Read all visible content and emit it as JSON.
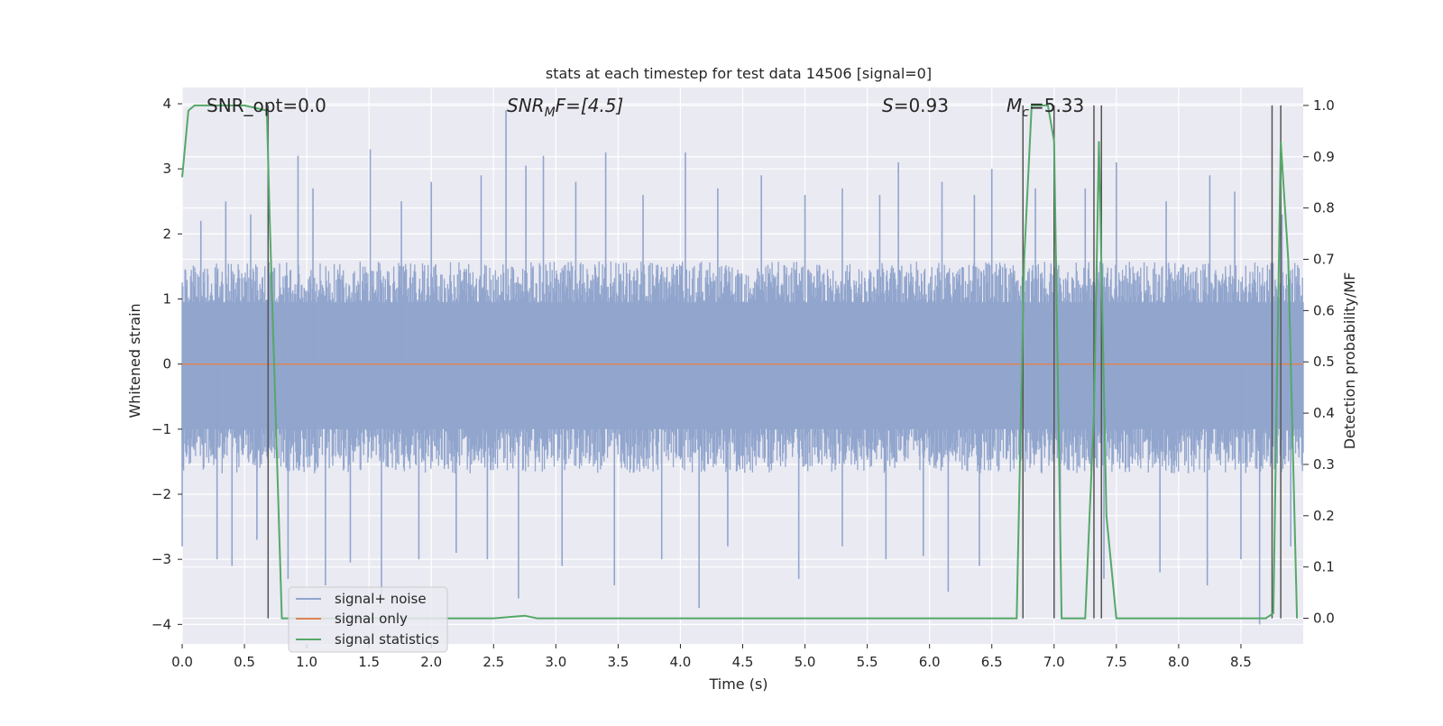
{
  "chart_data": {
    "type": "line",
    "title": "stats at each timestep for test data 14506 [signal=0]",
    "xlabel": "Time (s)",
    "ylabel_left": "Whitened strain",
    "ylabel_right": "Detection probability/MF",
    "xlim": [
      0.0,
      9.0
    ],
    "ylim_left": [
      -4.3,
      4.25
    ],
    "ylim_right": [
      -0.05,
      1.035
    ],
    "x_ticks": [
      0.0,
      0.5,
      1.0,
      1.5,
      2.0,
      2.5,
      3.0,
      3.5,
      4.0,
      4.5,
      5.0,
      5.5,
      6.0,
      6.5,
      7.0,
      7.5,
      8.0,
      8.5
    ],
    "x_tick_labels": [
      "0.0",
      "0.5",
      "1.0",
      "1.5",
      "2.0",
      "2.5",
      "3.0",
      "3.5",
      "4.0",
      "4.5",
      "5.0",
      "5.5",
      "6.0",
      "6.5",
      "7.0",
      "7.5",
      "8.0",
      "8.5"
    ],
    "y_left_ticks": [
      -4,
      -3,
      -2,
      -1,
      0,
      1,
      2,
      3,
      4
    ],
    "y_left_tick_labels": [
      "−4",
      "−3",
      "−2",
      "−1",
      "0",
      "1",
      "2",
      "3",
      "4"
    ],
    "y_right_ticks": [
      0.0,
      0.1,
      0.2,
      0.3,
      0.4,
      0.5,
      0.6,
      0.7,
      0.8,
      0.9,
      1.0
    ],
    "y_right_tick_labels": [
      "0.0",
      "0.1",
      "0.2",
      "0.3",
      "0.4",
      "0.5",
      "0.6",
      "0.7",
      "0.8",
      "0.9",
      "1.0"
    ],
    "grid": true,
    "legend_position": "lower-left",
    "annotations": {
      "snr_opt": "SNR_opt=0.0",
      "snr_mf_label": "SNR",
      "snr_mf_sub": "M",
      "snr_mf_rest": "F=[4.5]",
      "s_label": "S",
      "s_rest": "=0.93",
      "mc_label": "M",
      "mc_sub": "c",
      "mc_rest": "=5.33"
    },
    "series": [
      {
        "name": "signal+ noise",
        "color": "#91a5cd",
        "kind": "noise",
        "envelope_upper": 1.5,
        "envelope_lower": -1.6,
        "spikes": [
          [
            0.15,
            2.2
          ],
          [
            0.35,
            2.5
          ],
          [
            0.55,
            2.3
          ],
          [
            0.93,
            3.2
          ],
          [
            1.05,
            2.7
          ],
          [
            1.51,
            3.3
          ],
          [
            1.76,
            2.5
          ],
          [
            2.0,
            2.8
          ],
          [
            2.4,
            2.9
          ],
          [
            2.6,
            3.9
          ],
          [
            2.76,
            3.05
          ],
          [
            2.9,
            3.2
          ],
          [
            3.16,
            2.8
          ],
          [
            3.4,
            3.25
          ],
          [
            3.7,
            2.6
          ],
          [
            4.04,
            3.25
          ],
          [
            4.3,
            2.7
          ],
          [
            4.65,
            2.9
          ],
          [
            5.0,
            2.6
          ],
          [
            5.3,
            2.7
          ],
          [
            5.6,
            2.6
          ],
          [
            5.75,
            3.1
          ],
          [
            6.1,
            2.8
          ],
          [
            6.36,
            2.6
          ],
          [
            6.5,
            3.0
          ],
          [
            6.85,
            2.7
          ],
          [
            7.25,
            2.7
          ],
          [
            7.5,
            3.1
          ],
          [
            7.9,
            2.5
          ],
          [
            8.25,
            2.9
          ],
          [
            8.45,
            2.65
          ],
          [
            8.83,
            2.3
          ],
          [
            0.0,
            -2.8
          ],
          [
            0.28,
            -3.0
          ],
          [
            0.4,
            -3.1
          ],
          [
            0.6,
            -2.7
          ],
          [
            0.85,
            -3.3
          ],
          [
            1.15,
            -3.4
          ],
          [
            1.35,
            -3.05
          ],
          [
            1.6,
            -3.55
          ],
          [
            1.9,
            -3.0
          ],
          [
            2.2,
            -2.9
          ],
          [
            2.45,
            -3.0
          ],
          [
            2.7,
            -3.6
          ],
          [
            3.05,
            -3.1
          ],
          [
            3.47,
            -3.4
          ],
          [
            3.85,
            -3.0
          ],
          [
            4.15,
            -3.75
          ],
          [
            4.38,
            -2.8
          ],
          [
            4.95,
            -3.3
          ],
          [
            5.3,
            -2.8
          ],
          [
            5.65,
            -3.0
          ],
          [
            5.95,
            -2.95
          ],
          [
            6.15,
            -3.5
          ],
          [
            6.4,
            -3.1
          ],
          [
            6.75,
            -2.7
          ],
          [
            7.05,
            -3.0
          ],
          [
            7.4,
            -3.3
          ],
          [
            7.85,
            -3.2
          ],
          [
            8.23,
            -3.4
          ],
          [
            8.5,
            -3.0
          ],
          [
            8.65,
            -4.0
          ],
          [
            8.9,
            -2.8
          ]
        ]
      },
      {
        "name": "signal only",
        "color": "#dd8452",
        "x": [
          0.0,
          9.0
        ],
        "y": [
          0.0,
          0.0
        ]
      },
      {
        "name": "signal statistics",
        "color": "#55a868",
        "axis": "right",
        "x": [
          0.0,
          0.05,
          0.1,
          0.5,
          0.68,
          0.7,
          0.8,
          0.82,
          2.5,
          2.75,
          2.85,
          6.7,
          6.76,
          6.82,
          6.95,
          7.0,
          7.06,
          7.25,
          7.32,
          7.36,
          7.42,
          7.5,
          8.7,
          8.76,
          8.82,
          8.88,
          8.95
        ],
        "y": [
          0.86,
          0.99,
          1.0,
          1.0,
          0.99,
          0.8,
          0.0,
          0.0,
          0.0,
          0.005,
          0.0,
          0.0,
          0.7,
          1.0,
          1.0,
          0.93,
          0.0,
          0.0,
          0.4,
          0.93,
          0.2,
          0.0,
          0.0,
          0.01,
          0.93,
          0.7,
          0.0
        ]
      }
    ],
    "vertical_markers": {
      "color": "#555555",
      "x": [
        0.69,
        6.75,
        7.0,
        7.32,
        7.38,
        8.75,
        8.82
      ],
      "y_range": [
        0.0,
        1.0
      ]
    }
  }
}
